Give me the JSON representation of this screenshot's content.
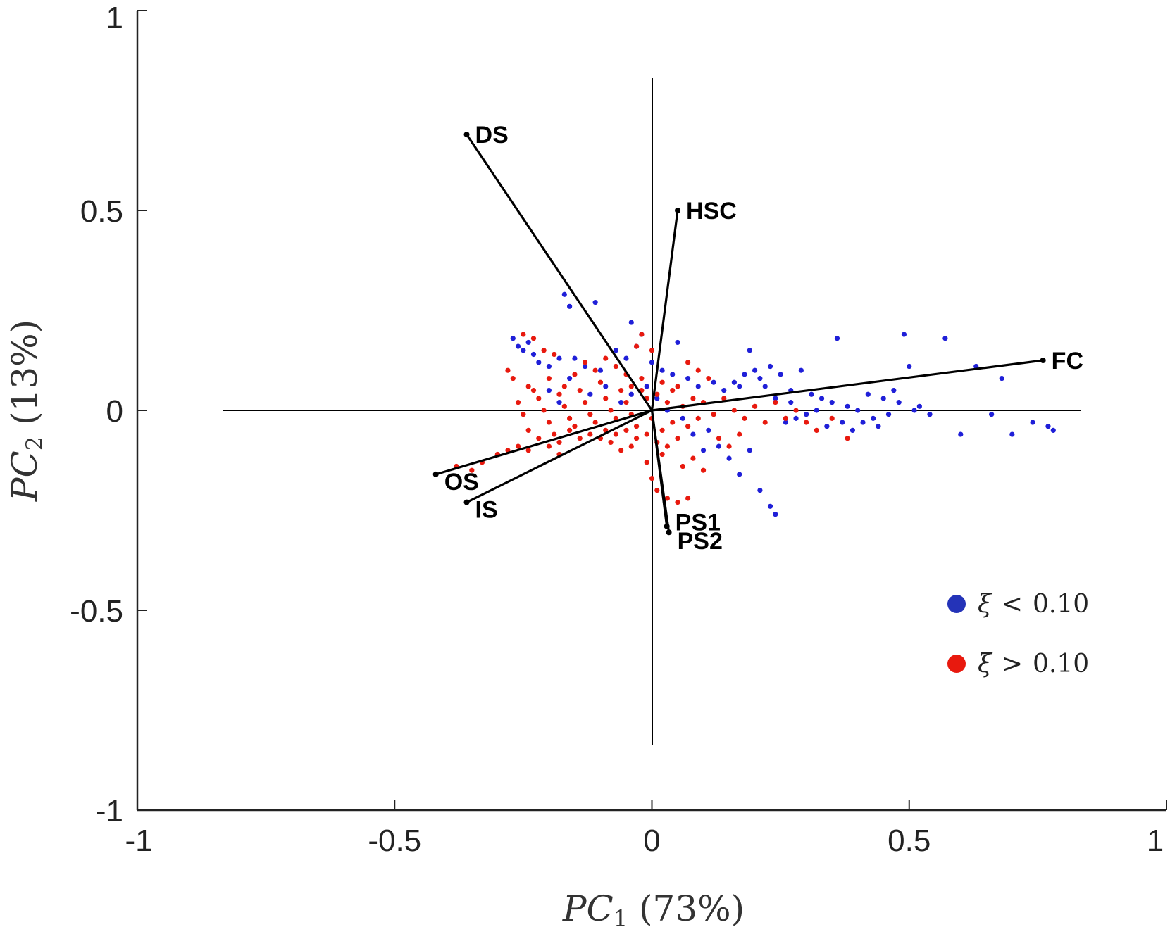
{
  "chart_data": {
    "type": "scatter",
    "xlabel": "PC1 (73%)",
    "ylabel": "PC2 (13%)",
    "xlim": [
      -1,
      1
    ],
    "ylim": [
      -1,
      1
    ],
    "x_ticks": [
      "-1",
      "-0.5",
      "0",
      "0.5",
      "1"
    ],
    "y_ticks": [
      "-1",
      "-0.5",
      "0",
      "0.5",
      "1"
    ],
    "grid": false,
    "legend_position": "bottom-right",
    "loadings": [
      {
        "name": "DS",
        "x": -0.36,
        "y": 0.69
      },
      {
        "name": "HSC",
        "x": 0.05,
        "y": 0.5
      },
      {
        "name": "FC",
        "x": 0.76,
        "y": 0.125
      },
      {
        "name": "OS",
        "x": -0.42,
        "y": -0.16
      },
      {
        "name": "IS",
        "x": -0.36,
        "y": -0.23
      },
      {
        "name": "PS1",
        "x": 0.029,
        "y": -0.29
      },
      {
        "name": "PS2",
        "x": 0.033,
        "y": -0.305
      }
    ],
    "series": [
      {
        "name": "ξ < 0.10",
        "color": "#1f1fd8",
        "points": [
          [
            -0.17,
            0.29
          ],
          [
            -0.16,
            0.26
          ],
          [
            -0.11,
            0.27
          ],
          [
            -0.04,
            0.22
          ],
          [
            -0.02,
            0.19
          ],
          [
            0.05,
            0.17
          ],
          [
            -0.27,
            0.18
          ],
          [
            -0.26,
            0.16
          ],
          [
            -0.25,
            0.15
          ],
          [
            -0.24,
            0.17
          ],
          [
            -0.23,
            0.14
          ],
          [
            -0.22,
            0.12
          ],
          [
            -0.2,
            0.11
          ],
          [
            -0.18,
            0.13
          ],
          [
            -0.15,
            0.13
          ],
          [
            -0.13,
            0.11
          ],
          [
            -0.1,
            0.1
          ],
          [
            -0.07,
            0.15
          ],
          [
            -0.05,
            0.13
          ],
          [
            -0.03,
            0.16
          ],
          [
            0.0,
            0.12
          ],
          [
            0.02,
            0.1
          ],
          [
            0.04,
            0.09
          ],
          [
            0.07,
            0.08
          ],
          [
            0.09,
            0.06
          ],
          [
            0.12,
            0.07
          ],
          [
            0.14,
            0.05
          ],
          [
            0.17,
            0.06
          ],
          [
            0.19,
            0.15
          ],
          [
            0.2,
            0.1
          ],
          [
            0.22,
            0.06
          ],
          [
            0.25,
            0.09
          ],
          [
            0.27,
            0.05
          ],
          [
            0.29,
            0.1
          ],
          [
            0.31,
            0.04
          ],
          [
            0.33,
            0.03
          ],
          [
            0.35,
            0.02
          ],
          [
            0.36,
            0.18
          ],
          [
            0.38,
            0.01
          ],
          [
            0.4,
            0.0
          ],
          [
            0.41,
            -0.03
          ],
          [
            0.43,
            -0.02
          ],
          [
            0.45,
            0.03
          ],
          [
            0.46,
            -0.01
          ],
          [
            0.48,
            0.02
          ],
          [
            0.49,
            0.19
          ],
          [
            0.5,
            0.11
          ],
          [
            0.52,
            0.01
          ],
          [
            0.54,
            -0.01
          ],
          [
            0.57,
            0.18
          ],
          [
            0.6,
            -0.06
          ],
          [
            0.63,
            0.11
          ],
          [
            0.66,
            -0.01
          ],
          [
            0.68,
            0.08
          ],
          [
            0.7,
            -0.06
          ],
          [
            0.74,
            -0.03
          ],
          [
            0.77,
            -0.04
          ],
          [
            0.78,
            -0.05
          ],
          [
            0.1,
            -0.1
          ],
          [
            0.13,
            -0.09
          ],
          [
            0.15,
            -0.12
          ],
          [
            0.17,
            -0.16
          ],
          [
            0.19,
            -0.1
          ],
          [
            0.21,
            -0.2
          ],
          [
            0.23,
            -0.24
          ],
          [
            0.24,
            -0.26
          ],
          [
            0.08,
            -0.06
          ],
          [
            0.11,
            -0.05
          ],
          [
            -0.2,
            0.05
          ],
          [
            -0.18,
            0.02
          ],
          [
            -0.16,
            0.08
          ],
          [
            -0.12,
            0.04
          ],
          [
            -0.09,
            0.06
          ],
          [
            -0.06,
            0.02
          ],
          [
            -0.04,
            0.04
          ],
          [
            -0.01,
            0.06
          ],
          [
            0.01,
            0.03
          ],
          [
            0.03,
            0.0
          ],
          [
            0.06,
            -0.02
          ],
          [
            0.26,
            -0.03
          ],
          [
            0.28,
            -0.02
          ],
          [
            0.3,
            -0.01
          ],
          [
            0.32,
            0.0
          ],
          [
            0.34,
            -0.04
          ],
          [
            0.37,
            -0.03
          ],
          [
            0.39,
            -0.05
          ],
          [
            0.42,
            0.04
          ],
          [
            0.44,
            -0.04
          ],
          [
            0.47,
            0.05
          ],
          [
            0.51,
            0.0
          ],
          [
            0.16,
            0.07
          ],
          [
            0.18,
            0.09
          ],
          [
            0.21,
            0.08
          ],
          [
            0.23,
            0.11
          ],
          [
            0.24,
            0.03
          ],
          [
            0.27,
            0.02
          ]
        ]
      },
      {
        "name": "ξ > 0.10",
        "color": "#e8190e",
        "points": [
          [
            -0.25,
            0.19
          ],
          [
            -0.23,
            0.18
          ],
          [
            -0.21,
            0.15
          ],
          [
            -0.19,
            0.14
          ],
          [
            -0.28,
            0.1
          ],
          [
            -0.27,
            0.08
          ],
          [
            -0.24,
            0.06
          ],
          [
            -0.22,
            0.03
          ],
          [
            -0.26,
            0.02
          ],
          [
            -0.25,
            -0.01
          ],
          [
            -0.24,
            -0.05
          ],
          [
            -0.21,
            0.0
          ],
          [
            -0.2,
            -0.03
          ],
          [
            -0.19,
            -0.06
          ],
          [
            -0.18,
            0.04
          ],
          [
            -0.17,
            0.01
          ],
          [
            -0.16,
            -0.02
          ],
          [
            -0.15,
            -0.04
          ],
          [
            -0.14,
            0.05
          ],
          [
            -0.13,
            0.02
          ],
          [
            -0.12,
            -0.01
          ],
          [
            -0.11,
            -0.03
          ],
          [
            -0.1,
            0.07
          ],
          [
            -0.09,
            0.03
          ],
          [
            -0.08,
            0.0
          ],
          [
            -0.07,
            -0.02
          ],
          [
            -0.06,
            0.05
          ],
          [
            -0.05,
            0.02
          ],
          [
            -0.04,
            -0.01
          ],
          [
            -0.03,
            -0.04
          ],
          [
            -0.02,
            0.08
          ],
          [
            -0.01,
            0.03
          ],
          [
            0.0,
            -0.02
          ],
          [
            0.01,
            0.04
          ],
          [
            0.02,
            -0.05
          ],
          [
            0.03,
            0.02
          ],
          [
            0.04,
            -0.03
          ],
          [
            0.05,
            0.06
          ],
          [
            0.06,
            0.01
          ],
          [
            0.07,
            -0.04
          ],
          [
            0.08,
            0.03
          ],
          [
            0.09,
            -0.02
          ],
          [
            0.1,
            0.02
          ],
          [
            0.12,
            -0.01
          ],
          [
            0.14,
            0.03
          ],
          [
            0.16,
            0.0
          ],
          [
            0.18,
            -0.02
          ],
          [
            0.2,
            0.01
          ],
          [
            0.22,
            -0.03
          ],
          [
            0.24,
            0.02
          ],
          [
            0.26,
            -0.02
          ],
          [
            0.28,
            0.0
          ],
          [
            0.3,
            -0.03
          ],
          [
            0.32,
            -0.05
          ],
          [
            0.35,
            -0.02
          ],
          [
            0.38,
            -0.07
          ],
          [
            -0.02,
            0.19
          ],
          [
            -0.03,
            0.16
          ],
          [
            0.0,
            0.15
          ],
          [
            -0.01,
            -0.13
          ],
          [
            0.0,
            -0.17
          ],
          [
            0.01,
            -0.2
          ],
          [
            0.03,
            -0.22
          ],
          [
            0.05,
            -0.23
          ],
          [
            0.07,
            -0.22
          ],
          [
            0.02,
            -0.11
          ],
          [
            -0.04,
            -0.09
          ],
          [
            -0.06,
            -0.1
          ],
          [
            -0.08,
            -0.08
          ],
          [
            -0.1,
            -0.07
          ],
          [
            -0.12,
            -0.06
          ],
          [
            -0.14,
            -0.07
          ],
          [
            -0.16,
            -0.05
          ],
          [
            -0.18,
            -0.08
          ],
          [
            -0.2,
            -0.09
          ],
          [
            -0.22,
            -0.07
          ],
          [
            -0.24,
            -0.1
          ],
          [
            -0.26,
            -0.09
          ],
          [
            -0.28,
            -0.1
          ],
          [
            -0.3,
            -0.11
          ],
          [
            -0.33,
            -0.13
          ],
          [
            -0.35,
            -0.15
          ],
          [
            -0.38,
            -0.14
          ],
          [
            0.07,
            0.12
          ],
          [
            0.09,
            0.1
          ],
          [
            0.11,
            0.08
          ],
          [
            0.13,
            -0.07
          ],
          [
            0.15,
            -0.09
          ],
          [
            0.17,
            -0.06
          ],
          [
            0.06,
            -0.14
          ],
          [
            0.08,
            -0.12
          ],
          [
            0.1,
            -0.15
          ],
          [
            -0.15,
            0.09
          ],
          [
            -0.13,
            0.12
          ],
          [
            -0.11,
            0.1
          ],
          [
            -0.09,
            0.13
          ],
          [
            -0.07,
            0.11
          ],
          [
            -0.05,
            0.09
          ],
          [
            -0.17,
            0.06
          ],
          [
            -0.2,
            0.08
          ],
          [
            -0.23,
            0.05
          ],
          [
            -0.18,
            -0.11
          ],
          [
            -0.09,
            -0.05
          ],
          [
            -0.07,
            -0.06
          ],
          [
            -0.05,
            -0.05
          ],
          [
            -0.03,
            -0.07
          ],
          [
            -0.01,
            -0.06
          ],
          [
            0.01,
            -0.08
          ],
          [
            0.03,
            -0.09
          ],
          [
            0.05,
            -0.07
          ],
          [
            0.04,
            0.05
          ],
          [
            0.02,
            0.07
          ],
          [
            -0.02,
            0.05
          ],
          [
            -0.04,
            0.06
          ]
        ]
      }
    ]
  }
}
